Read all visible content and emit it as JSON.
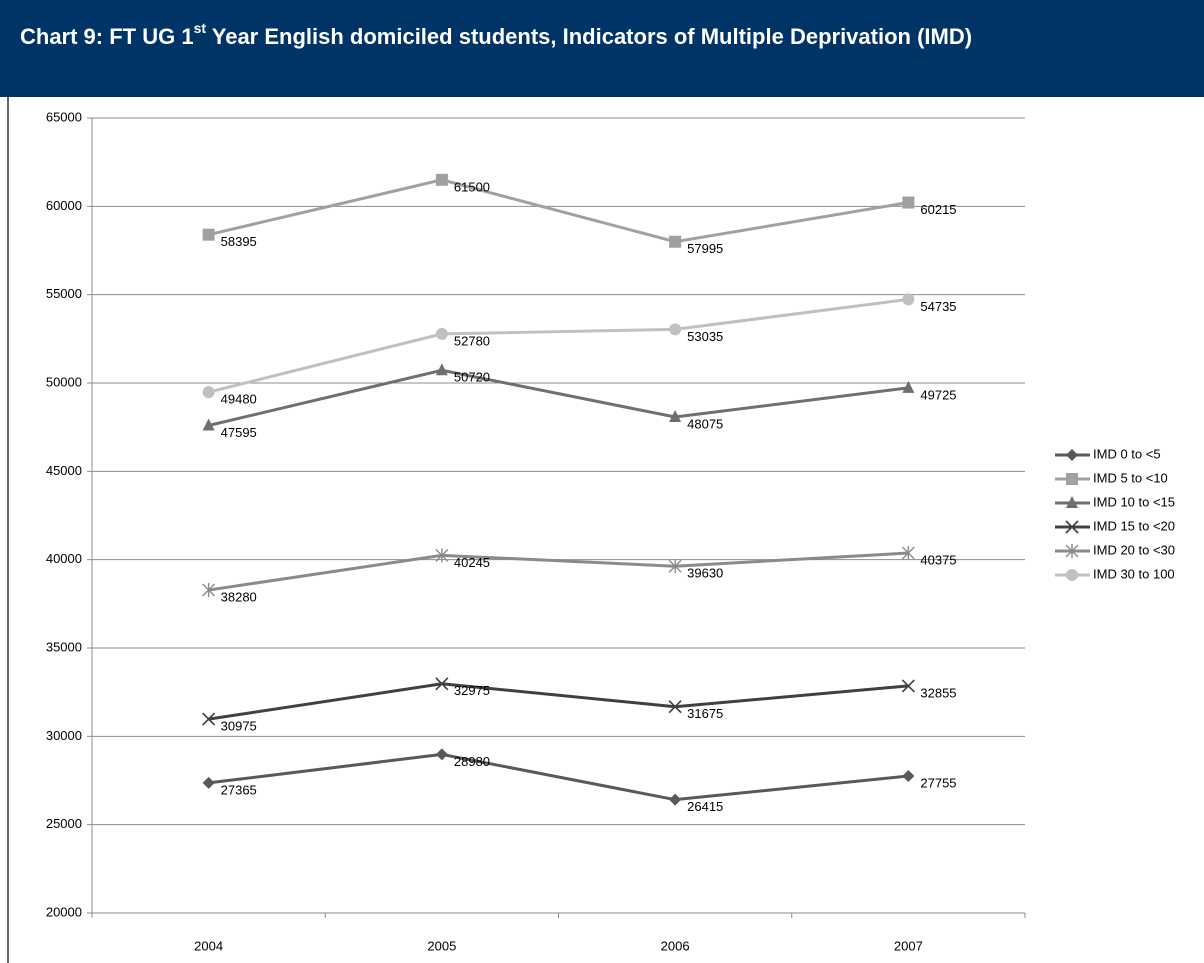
{
  "chart_data": {
    "type": "line",
    "title": [
      "Chart 9: FT UG 1",
      "st",
      " Year English domiciled students, Indicators of Multiple Deprivation (IMD)"
    ],
    "categories": [
      "2004",
      "2005",
      "2006",
      "2007"
    ],
    "ylim": [
      20000,
      65000
    ],
    "yticks": [
      20000,
      25000,
      30000,
      35000,
      40000,
      45000,
      50000,
      55000,
      60000,
      65000
    ],
    "grid": true,
    "legend": "right",
    "series": [
      {
        "name": "IMD 0 to <5",
        "color": "#595959",
        "marker": "diamond",
        "values": [
          27365,
          28980,
          26415,
          27755
        ]
      },
      {
        "name": "IMD 5 to <10",
        "color": "#a0a0a0",
        "marker": "square",
        "values": [
          58395,
          61500,
          57995,
          60215
        ]
      },
      {
        "name": "IMD 10 to <15",
        "color": "#6f6f6f",
        "marker": "triangle",
        "values": [
          47595,
          50720,
          48075,
          49725
        ]
      },
      {
        "name": "IMD 15 to <20",
        "color": "#404040",
        "marker": "x",
        "values": [
          30975,
          32975,
          31675,
          32855
        ]
      },
      {
        "name": "IMD 20 to <30",
        "color": "#8a8a8a",
        "marker": "star",
        "values": [
          38280,
          40245,
          39630,
          40375
        ]
      },
      {
        "name": "IMD 30 to 100",
        "color": "#c0c0c0",
        "marker": "circle",
        "values": [
          49480,
          52780,
          53035,
          54735
        ]
      }
    ]
  }
}
